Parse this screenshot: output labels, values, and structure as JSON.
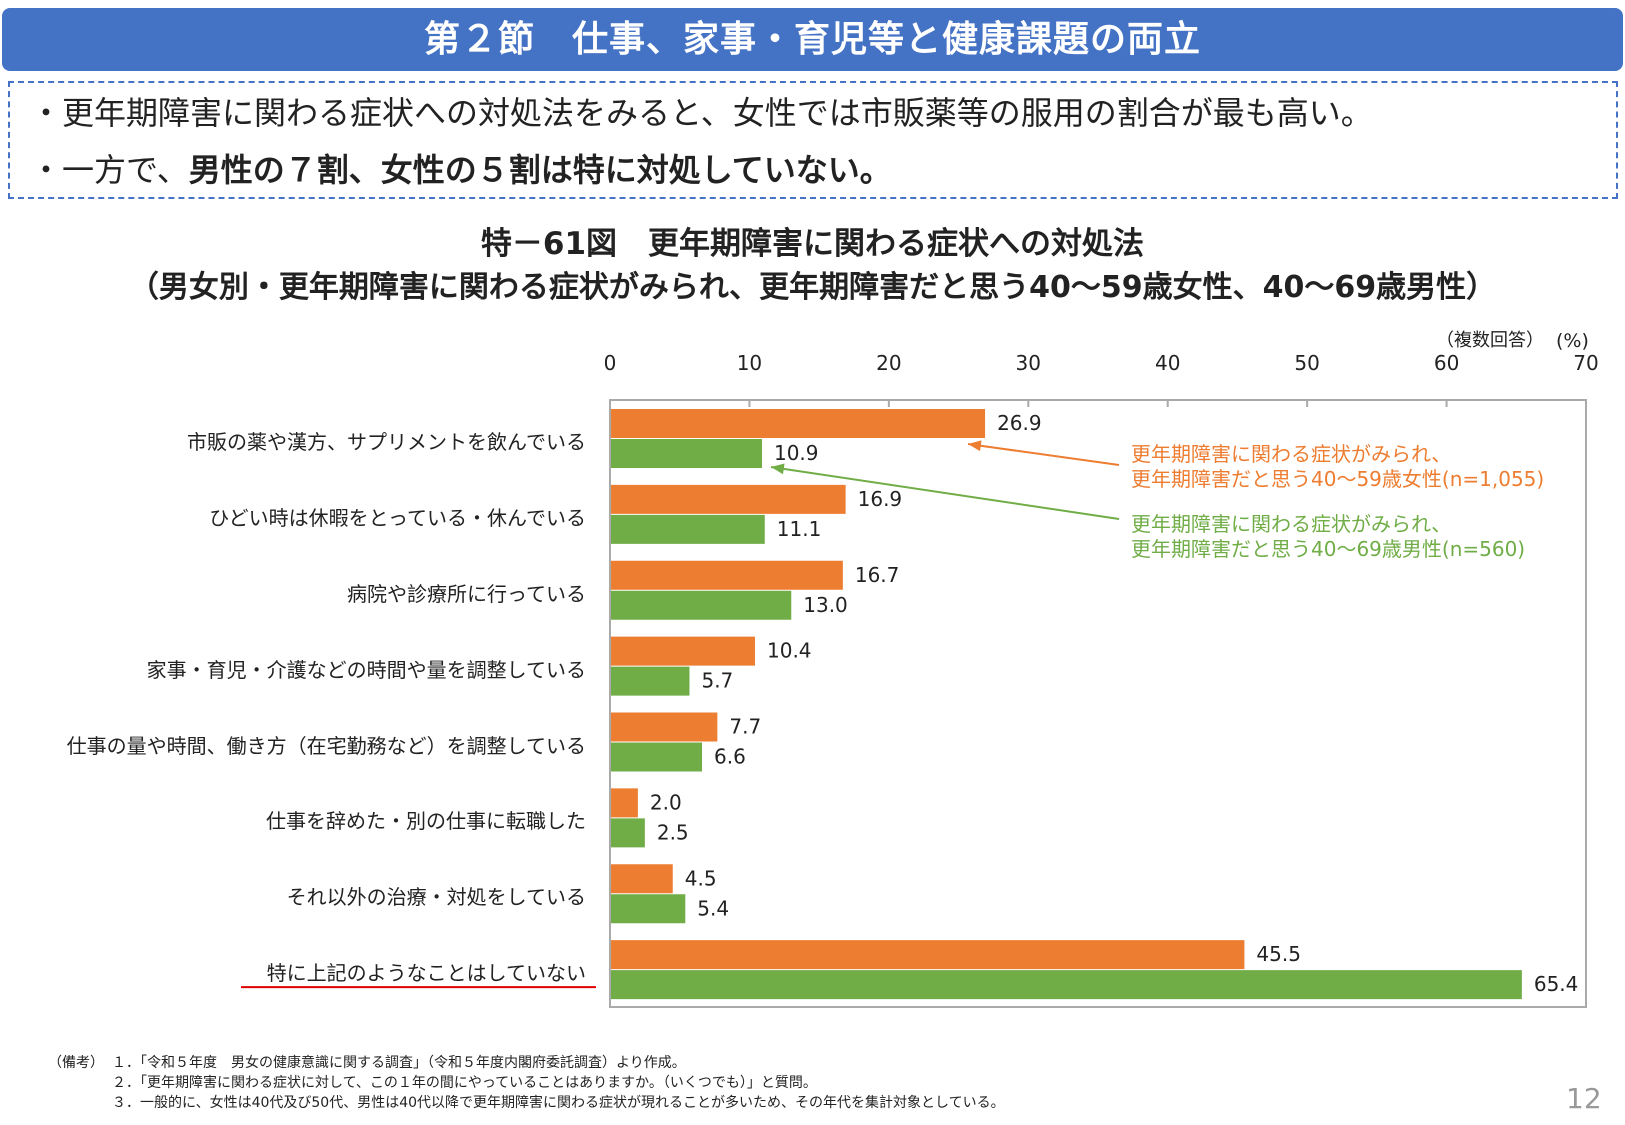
{
  "header": {
    "title": "第２節　仕事、家事・育児等と健康課題の両立"
  },
  "summary": {
    "bullet1": "・更年期障害に関わる症状への対処法をみると、女性では市販薬等の服用の割合が最も高い。",
    "bullet2_prefix": "・一方で、",
    "bullet2_bold": "男性の７割、女性の５割は特に対処していない。"
  },
  "chart_data": {
    "type": "bar",
    "orientation": "horizontal",
    "title": "特－61図　更年期障害に関わる症状への対処法",
    "subtitle": "（男女別・更年期障害に関わる症状がみられ、更年期障害だと思う40～59歳女性、40～69歳男性）",
    "note": "（複数回答）",
    "unit": "(%)",
    "xlim": [
      0,
      70
    ],
    "ticks": [
      "0",
      "10",
      "20",
      "30",
      "40",
      "50",
      "60",
      "70"
    ],
    "categories": [
      "市販の薬や漢方、サプリメントを飲んでいる",
      "ひどい時は休暇をとっている・休んでいる",
      "病院や診療所に行っている",
      "家事・育児・介護などの時間や量を調整している",
      "仕事の量や時間、働き方（在宅勤務など）を調整している",
      "仕事を辞めた・別の仕事に転職した",
      "それ以外の治療・対処をしている",
      "特に上記のようなことはしていない"
    ],
    "series": [
      {
        "name": "更年期障害に関わる症状がみられ、\n更年期障害だと思う40～59歳女性(n=1,055)",
        "line1": "更年期障害に関わる症状がみられ、",
        "line2": "更年期障害だと思う40～59歳女性(n=1,055)",
        "color": "#ED7D31",
        "values": [
          26.9,
          16.9,
          16.7,
          10.4,
          7.7,
          2.0,
          4.5,
          45.5
        ],
        "labels": [
          "26.9",
          "16.9",
          "16.7",
          "10.4",
          "7.7",
          "2.0",
          "4.5",
          "45.5"
        ]
      },
      {
        "name": "更年期障害に関わる症状がみられ、\n更年期障害だと思う40～69歳男性(n=560)",
        "line1": "更年期障害に関わる症状がみられ、",
        "line2": "更年期障害だと思う40～69歳男性(n=560)",
        "color": "#70AD47",
        "values": [
          10.9,
          11.1,
          13.0,
          5.7,
          6.6,
          2.5,
          5.4,
          65.4
        ],
        "labels": [
          "10.9",
          "11.1",
          "13.0",
          "5.7",
          "6.6",
          "2.5",
          "5.4",
          "65.4"
        ]
      }
    ],
    "highlight_category_underline_color": "#E00000",
    "grid": false,
    "legend": "right (callout arrows)"
  },
  "footnotes": {
    "label": "（備考）",
    "items": [
      "１．「令和５年度　男女の健康意識に関する調査」（令和５年度内閣府委託調査）より作成。",
      "２．「更年期障害に関わる症状に対して、この１年の間にやっていることはありますか。（いくつでも）」と質問。",
      "３．一般的に、女性は40代及び50代、男性は40代以降で更年期障害に関わる症状が現れることが多いため、その年代を集計対象としている。"
    ]
  },
  "page_number": "12"
}
